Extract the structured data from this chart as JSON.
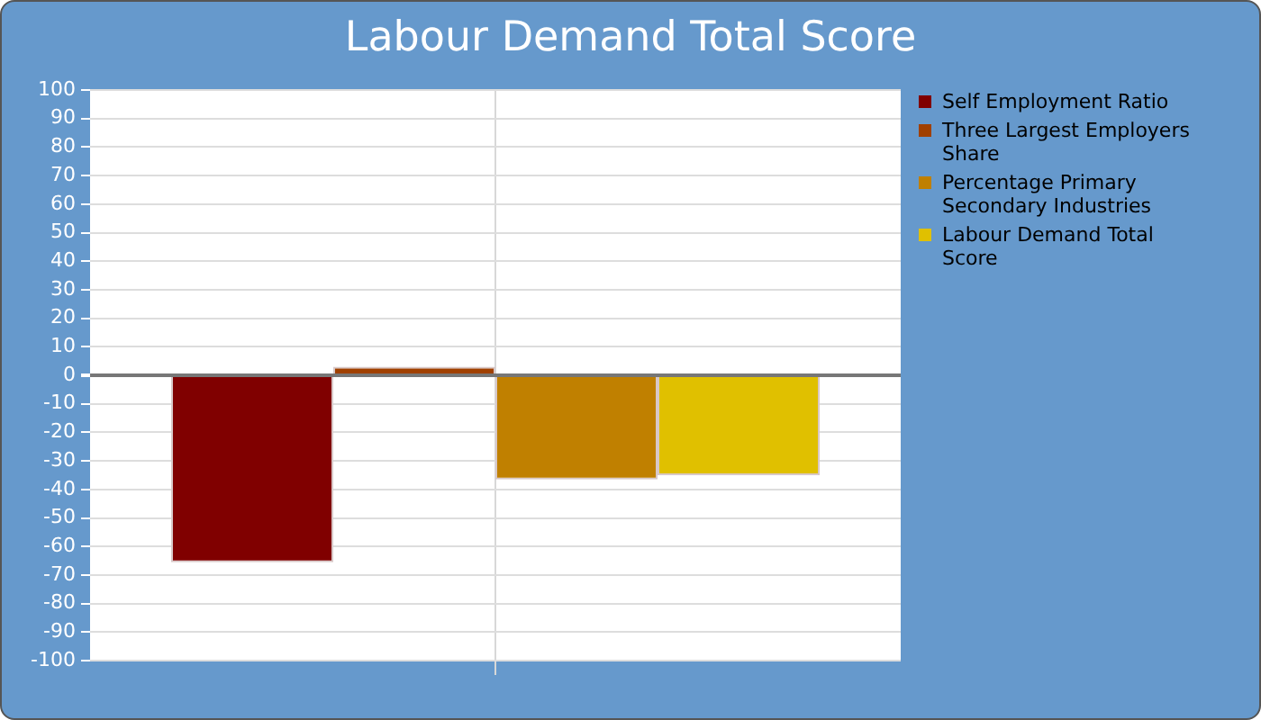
{
  "chart_data": {
    "type": "bar",
    "title": "Labour Demand Total Score",
    "categories": [
      null
    ],
    "series": [
      {
        "name": "Self Employment Ratio",
        "color": "#800000",
        "values": [
          -65.5
        ]
      },
      {
        "name": "Three Largest Employers Share",
        "color": "#a04000",
        "values": [
          3
        ]
      },
      {
        "name": "Percentage Primary Secondary Industries",
        "color": "#c08000",
        "values": [
          -36.5
        ]
      },
      {
        "name": "Labour Demand Total Score",
        "color": "#e0c000",
        "values": [
          -35
        ]
      }
    ],
    "ylim": [
      -100,
      100
    ],
    "yticks": [
      -100,
      -90,
      -80,
      -70,
      -60,
      -50,
      -40,
      -30,
      -20,
      -10,
      0,
      10,
      20,
      30,
      40,
      50,
      60,
      70,
      80,
      90,
      100
    ],
    "grid": true,
    "legend": "right",
    "tick_labels": "y"
  }
}
